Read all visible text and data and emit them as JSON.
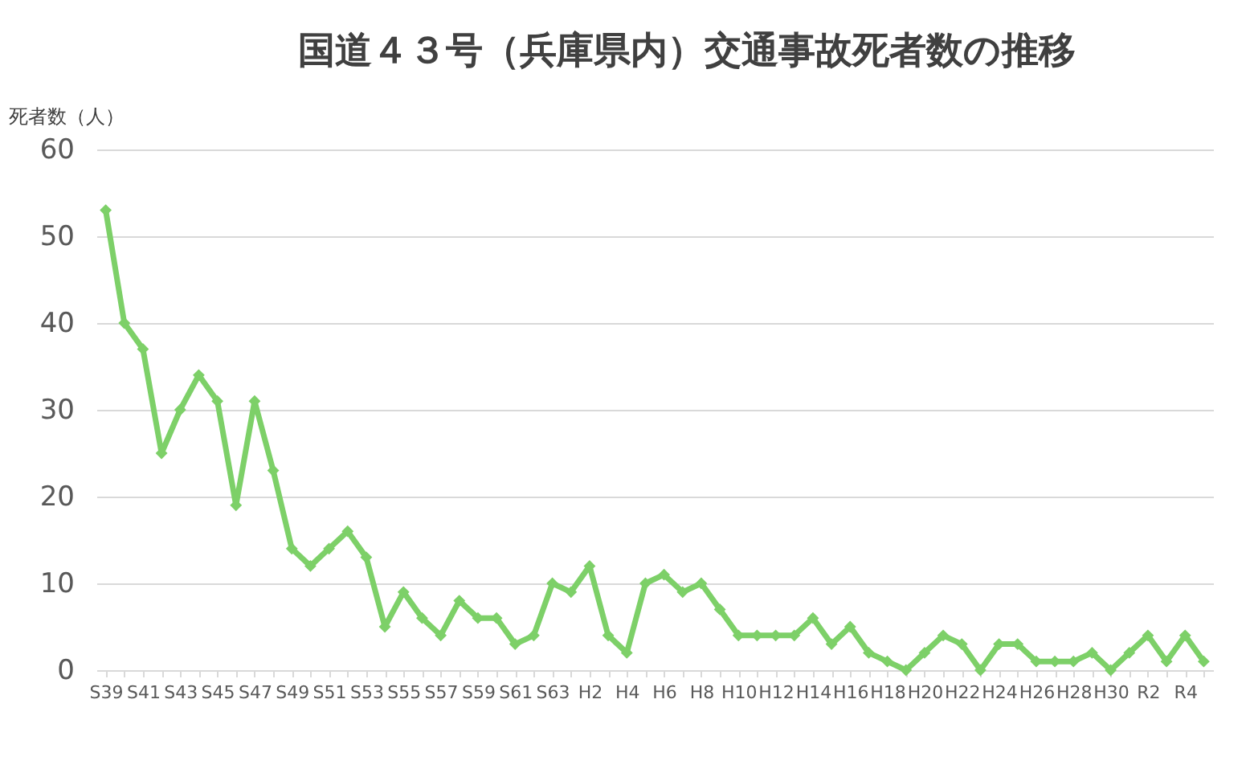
{
  "chart_data": {
    "type": "line",
    "title": "国道４３号（兵庫県内）交通事故死者数の推移",
    "ylabel": "死者数（人）",
    "categories": [
      "S39",
      null,
      "S41",
      null,
      "S43",
      null,
      "S45",
      null,
      "S47",
      null,
      "S49",
      null,
      "S51",
      null,
      "S53",
      null,
      "S55",
      null,
      "S57",
      null,
      "S59",
      null,
      "S61",
      null,
      "S63",
      null,
      "H2",
      null,
      "H4",
      null,
      "H6",
      null,
      "H8",
      null,
      "H10",
      null,
      "H12",
      null,
      "H14",
      null,
      "H16",
      null,
      "H18",
      null,
      "H20",
      null,
      "H22",
      null,
      "H24",
      null,
      "H26",
      null,
      "H28",
      null,
      "H30",
      null,
      "R2",
      null,
      "R4",
      null
    ],
    "series": [
      {
        "color": "#7dd068",
        "values": [
          53,
          40,
          37,
          25,
          30,
          34,
          31,
          19,
          31,
          23,
          14,
          12,
          14,
          16,
          13,
          5,
          9,
          6,
          4,
          8,
          6,
          6,
          3,
          4,
          10,
          9,
          12,
          4,
          2,
          10,
          11,
          9,
          10,
          7,
          4,
          4,
          4,
          4,
          6,
          3,
          5,
          2,
          1,
          0,
          2,
          4,
          3,
          0,
          3,
          3,
          1,
          1,
          1,
          2,
          0,
          2,
          4,
          1,
          4,
          1
        ]
      }
    ],
    "ylim": [
      0,
      60
    ],
    "yticks": [
      0,
      10,
      20,
      30,
      40,
      50,
      60
    ],
    "grid": "y",
    "marker": "diamond",
    "line_style": "solid"
  }
}
